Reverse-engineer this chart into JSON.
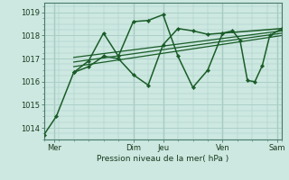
{
  "bg_color": "#cce8e0",
  "plot_bg": "#cce8e0",
  "grid_color": "#aacfc8",
  "line_color": "#1a5c28",
  "xlabel": "Pression niveau de la mer( hPa )",
  "ylim": [
    1013.5,
    1019.4
  ],
  "yticks": [
    1014,
    1015,
    1016,
    1017,
    1018,
    1019
  ],
  "xlim": [
    0,
    192
  ],
  "xtick_labels": [
    "Mer",
    "Dim",
    "Jeu",
    "Ven",
    "Sam"
  ],
  "xtick_positions": [
    8,
    72,
    96,
    144,
    188
  ],
  "vlines": [
    8,
    72,
    96,
    144,
    188
  ],
  "series1_x": [
    0,
    10,
    24,
    36,
    48,
    60,
    72,
    84,
    96,
    108,
    120,
    132,
    144,
    192
  ],
  "series1_y": [
    1013.7,
    1014.5,
    1016.4,
    1016.65,
    1017.1,
    1017.0,
    1016.3,
    1015.85,
    1017.6,
    1018.3,
    1018.2,
    1018.05,
    1018.1,
    1018.3
  ],
  "series2_x": [
    24,
    36,
    48,
    60,
    72,
    84,
    96,
    108,
    120,
    132,
    144,
    152,
    158,
    164,
    170,
    176,
    182,
    192
  ],
  "series2_y": [
    1016.4,
    1016.9,
    1018.1,
    1017.1,
    1018.6,
    1018.65,
    1018.9,
    1017.1,
    1015.75,
    1016.5,
    1018.1,
    1018.2,
    1017.8,
    1016.05,
    1016.0,
    1016.7,
    1018.0,
    1018.3
  ],
  "trend1_x": [
    24,
    192
  ],
  "trend1_y": [
    1016.65,
    1018.0
  ],
  "trend2_x": [
    24,
    192
  ],
  "trend2_y": [
    1016.85,
    1018.1
  ],
  "trend3_x": [
    24,
    192
  ],
  "trend3_y": [
    1017.05,
    1018.2
  ]
}
